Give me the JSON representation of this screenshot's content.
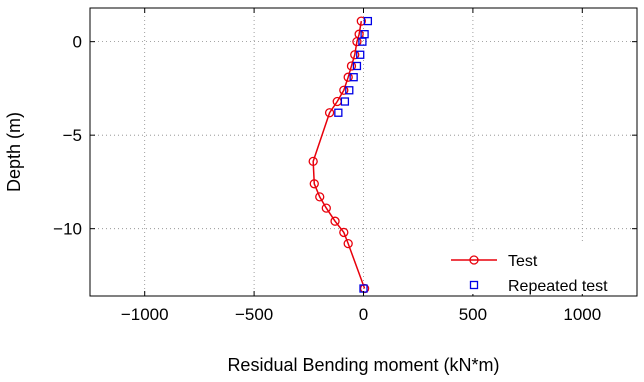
{
  "chart_data": {
    "type": "line",
    "xlabel": "Residual Bending moment (kN*m)",
    "ylabel": "Depth (m)",
    "xlim": [
      -1250,
      1250
    ],
    "ylim": [
      -13.6,
      1.8
    ],
    "xticks": [
      -1000,
      -500,
      0,
      500,
      1000
    ],
    "yticks": [
      0,
      -5,
      -10
    ],
    "xtick_labels": [
      "−1000",
      "−500",
      "0",
      "500",
      "1000"
    ],
    "ytick_labels": [
      "0",
      "−5",
      "−10"
    ],
    "grid": true,
    "legend_position": "bottom-right",
    "series": [
      {
        "name": "Test",
        "color": "#e8000b",
        "marker": "circle",
        "line": true,
        "points": [
          {
            "x": -10,
            "y": 1.1
          },
          {
            "x": -20,
            "y": 0.4
          },
          {
            "x": -30,
            "y": 0.0
          },
          {
            "x": -40,
            "y": -0.7
          },
          {
            "x": -55,
            "y": -1.3
          },
          {
            "x": -70,
            "y": -1.9
          },
          {
            "x": -90,
            "y": -2.6
          },
          {
            "x": -120,
            "y": -3.2
          },
          {
            "x": -155,
            "y": -3.8
          },
          {
            "x": -230,
            "y": -6.4
          },
          {
            "x": -225,
            "y": -7.6
          },
          {
            "x": -200,
            "y": -8.3
          },
          {
            "x": -170,
            "y": -8.9
          },
          {
            "x": -130,
            "y": -9.6
          },
          {
            "x": -90,
            "y": -10.2
          },
          {
            "x": -70,
            "y": -10.8
          },
          {
            "x": 5,
            "y": -13.2
          }
        ]
      },
      {
        "name": "Repeated test",
        "color": "#0000e6",
        "marker": "square",
        "line": false,
        "points": [
          {
            "x": 20,
            "y": 1.1
          },
          {
            "x": 5,
            "y": 0.4
          },
          {
            "x": -5,
            "y": 0.0
          },
          {
            "x": -15,
            "y": -0.7
          },
          {
            "x": -30,
            "y": -1.3
          },
          {
            "x": -45,
            "y": -1.9
          },
          {
            "x": -65,
            "y": -2.6
          },
          {
            "x": -85,
            "y": -3.2
          },
          {
            "x": -115,
            "y": -3.8
          },
          {
            "x": 0,
            "y": -13.2
          }
        ]
      }
    ]
  }
}
